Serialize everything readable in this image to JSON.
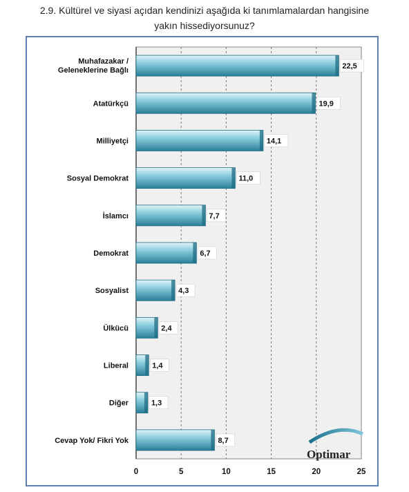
{
  "title_line1": "2.9. Kültürel ve siyasi açıdan kendinizi aşağıda ki tanımlamalardan hangisine",
  "title_line2": "yakın hissediyorsunuz?",
  "logo": "Optimar",
  "colors": {
    "bar_top": "#d6eef5",
    "bar_mid": "#7ec3d6",
    "bar_bottom": "#2f8aa3",
    "frame": "#5a7fb0",
    "plot_bg": "#f0f0f0"
  },
  "chart_data": {
    "type": "bar",
    "orientation": "horizontal",
    "categories": [
      "Muhafazakar  / Geleneklerine Bağlı",
      "Atatürkçü",
      "Milliyetçi",
      "Sosyal Demokrat",
      "İslamcı",
      "Demokrat",
      "Sosyalist",
      "Ülkücü",
      "Liberal",
      "Diğer",
      "Cevap Yok/  Fikri Yok"
    ],
    "values": [
      22.5,
      19.9,
      14.1,
      11.0,
      7.7,
      6.7,
      4.3,
      2.4,
      1.4,
      1.3,
      8.7
    ],
    "value_labels": [
      "22,5",
      "19,9",
      "14,1",
      "11,0",
      "7,7",
      "6,7",
      "4,3",
      "2,4",
      "1,4",
      "1,3",
      "8,7"
    ],
    "xlim": [
      0,
      25
    ],
    "xticks": [
      0,
      5,
      10,
      15,
      20,
      25
    ],
    "grid": "vertical dashed"
  }
}
